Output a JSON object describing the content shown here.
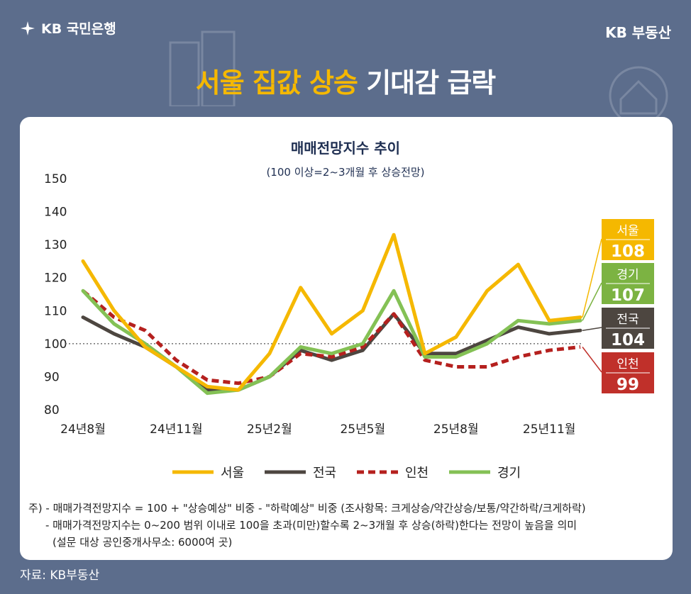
{
  "brand": {
    "left_logo": "KB 국민은행",
    "right_logo": "KB 부동산"
  },
  "headline": {
    "highlight": "서울 집값 상승",
    "rest": " 기대감 급락"
  },
  "chart_data": {
    "type": "line",
    "title": "매매전망지수 추이",
    "subtitle": "(100 이상=2~3개월 후 상승전망)",
    "ylim": [
      80,
      150
    ],
    "yticks": [
      150,
      140,
      130,
      120,
      110,
      100,
      90,
      80
    ],
    "x_tick_labels": [
      "24년8월",
      "24년11월",
      "25년2월",
      "25년5월",
      "25년8월",
      "25년11월"
    ],
    "x_tick_index": [
      0,
      3,
      6,
      9,
      12,
      15
    ],
    "points": 17,
    "reference_line": 100,
    "grid": false,
    "legend_position": "bottom",
    "series": [
      {
        "name": "서울",
        "color": "#f5b800",
        "dashed": false,
        "values": [
          125,
          110,
          99,
          93,
          87,
          86,
          97,
          117,
          103,
          110,
          133,
          97,
          102,
          116,
          124,
          107,
          108
        ]
      },
      {
        "name": "전국",
        "color": "#4d4640",
        "dashed": false,
        "values": [
          108,
          103,
          99,
          93,
          86,
          86,
          90,
          98,
          95,
          98,
          109,
          97,
          97,
          101,
          105,
          103,
          104
        ]
      },
      {
        "name": "인천",
        "color": "#b5201e",
        "dashed": true,
        "values": [
          116,
          108,
          104,
          95,
          89,
          88,
          90,
          97,
          96,
          99,
          109,
          95,
          93,
          93,
          96,
          98,
          99
        ]
      },
      {
        "name": "경기",
        "color": "#84c155",
        "dashed": false,
        "values": [
          116,
          106,
          100,
          93,
          85,
          86,
          90,
          99,
          97,
          100,
          116,
          96,
          96,
          100,
          107,
          106,
          107
        ]
      }
    ],
    "end_labels": [
      {
        "name": "서울",
        "value": "108",
        "color": "#f5b800"
      },
      {
        "name": "경기",
        "value": "107",
        "color": "#7cb342"
      },
      {
        "name": "전국",
        "value": "104",
        "color": "#4d4640"
      },
      {
        "name": "인천",
        "value": "99",
        "color": "#c0302a"
      }
    ]
  },
  "notes": {
    "line1": "주) - 매매가격전망지수 = 100 + \"상승예상\" 비중 - \"하락예상\" 비중 (조사항목: 크게상승/약간상승/보통/약간하락/크게하락)",
    "line2": "- 매매가격전망지수는 0~200 범위 이내로 100을 초과(미만)할수록 2~3개월 후 상승(하락)한다는 전망이 높음을 의미",
    "line3": "(설문 대상 공인중개사무소: 6000여 곳)"
  },
  "source": "자료: KB부동산"
}
